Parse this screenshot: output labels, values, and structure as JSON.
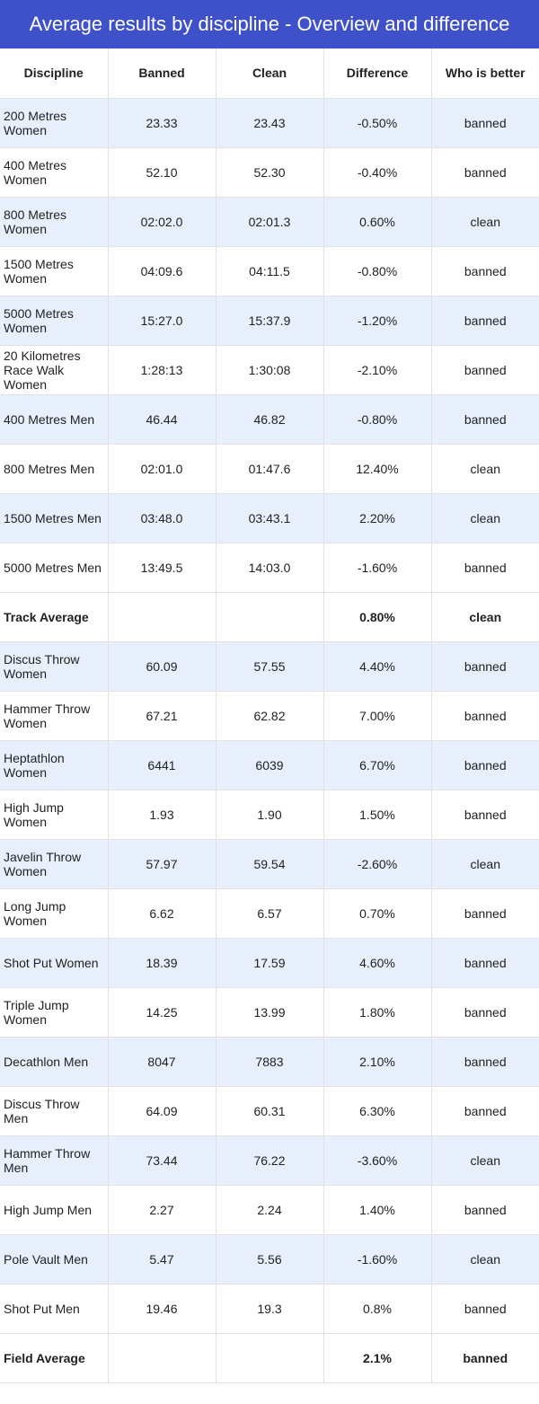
{
  "header": {
    "title": "Average results by discipline - Overview and difference"
  },
  "table": {
    "columns": [
      "Discipline",
      "Banned",
      "Clean",
      "Difference",
      "Who is better"
    ],
    "rows": [
      [
        "200 Metres Women",
        "23.33",
        "23.43",
        "-0.50%",
        "banned"
      ],
      [
        "400 Metres Women",
        "52.10",
        "52.30",
        "-0.40%",
        "banned"
      ],
      [
        "800 Metres Women",
        "02:02.0",
        "02:01.3",
        "0.60%",
        "clean"
      ],
      [
        "1500 Metres Women",
        "04:09.6",
        "04:11.5",
        "-0.80%",
        "banned"
      ],
      [
        "5000 Metres Women",
        "15:27.0",
        "15:37.9",
        "-1.20%",
        "banned"
      ],
      [
        "20 Kilometres Race Walk Women",
        "1:28:13",
        "1:30:08",
        "-2.10%",
        "banned"
      ],
      [
        "400 Metres Men",
        "46.44",
        "46.82",
        "-0.80%",
        "banned"
      ],
      [
        "800 Metres Men",
        "02:01.0",
        "01:47.6",
        "12.40%",
        "clean"
      ],
      [
        "1500 Metres Men",
        "03:48.0",
        "03:43.1",
        "2.20%",
        "clean"
      ],
      [
        "5000 Metres Men",
        "13:49.5",
        "14:03.0",
        "-1.60%",
        "banned"
      ],
      [
        "Track Average",
        null,
        null,
        "0.80%",
        "clean"
      ],
      [
        "Discus Throw Women",
        "60.09",
        "57.55",
        "4.40%",
        "banned"
      ],
      [
        "Hammer Throw Women",
        "67.21",
        "62.82",
        "7.00%",
        "banned"
      ],
      [
        "Heptathlon Women",
        "6441",
        "6039",
        "6.70%",
        "banned"
      ],
      [
        "High Jump Women",
        "1.93",
        "1.90",
        "1.50%",
        "banned"
      ],
      [
        "Javelin Throw Women",
        "57.97",
        "59.54",
        "-2.60%",
        "clean"
      ],
      [
        "Long Jump Women",
        "6.62",
        "6.57",
        "0.70%",
        "banned"
      ],
      [
        "Shot Put Women",
        "18.39",
        "17.59",
        "4.60%",
        "banned"
      ],
      [
        "Triple Jump Women",
        "14.25",
        "13.99",
        "1.80%",
        "banned"
      ],
      [
        "Decathlon Men",
        "8047",
        "7883",
        "2.10%",
        "banned"
      ],
      [
        "Discus Throw Men",
        "64.09",
        "60.31",
        "6.30%",
        "banned"
      ],
      [
        "Hammer Throw Men",
        "73.44",
        "76.22",
        "-3.60%",
        "clean"
      ],
      [
        "High Jump Men",
        "2.27",
        "2.24",
        "1.40%",
        "banned"
      ],
      [
        "Pole Vault Men",
        "5.47",
        "5.56",
        "-1.60%",
        "clean"
      ],
      [
        "Shot Put Men",
        "19.46",
        "19.3",
        "0.8%",
        "banned"
      ],
      [
        "Field Average",
        null,
        null,
        "2.1%",
        "banned"
      ]
    ]
  }
}
